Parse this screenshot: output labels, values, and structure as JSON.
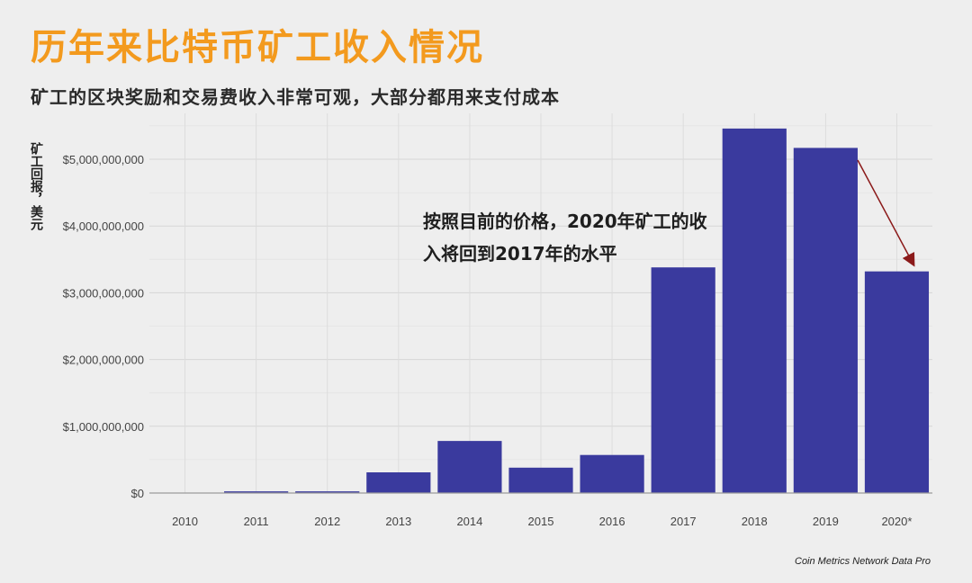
{
  "title": "历年来比特币矿工收入情况",
  "subtitle": "矿工的区块奖励和交易费收入非常可观，大部分都用来支付成本",
  "annotation": "按照目前的价格，2020年矿工的收入将回到2017年的水平",
  "source": "Coin Metrics Network Data Pro",
  "colors": {
    "bar": "#3a3a9e",
    "title": "#f39a1e",
    "arrow": "#8b1a1a"
  },
  "chart_data": {
    "type": "bar",
    "title": "历年来比特币矿工收入情况",
    "subtitle": "矿工的区块奖励和交易费收入非常可观，大部分都用来支付成本",
    "xlabel": "",
    "ylabel": "矿工回报，美元",
    "categories": [
      "2010",
      "2011",
      "2012",
      "2013",
      "2014",
      "2015",
      "2016",
      "2017",
      "2018",
      "2019",
      "2020*"
    ],
    "values": [
      5000000,
      25000000,
      25000000,
      310000000,
      780000000,
      380000000,
      570000000,
      3380000000,
      5460000000,
      5170000000,
      3320000000
    ],
    "ylim": [
      0,
      5600000000
    ],
    "yticks": [
      0,
      1000000000,
      2000000000,
      3000000000,
      4000000000,
      5000000000
    ],
    "ytick_labels": [
      "$0",
      "$1,000,000,000",
      "$2,000,000,000",
      "$3,000,000,000",
      "$4,000,000,000",
      "$5,000,000,000"
    ],
    "grid": true,
    "legend": "none",
    "annotations": [
      {
        "text": "按照目前的价格，2020年矿工的收入将回到2017年的水平",
        "arrow_from": "2019",
        "arrow_to": "2020*"
      }
    ]
  }
}
